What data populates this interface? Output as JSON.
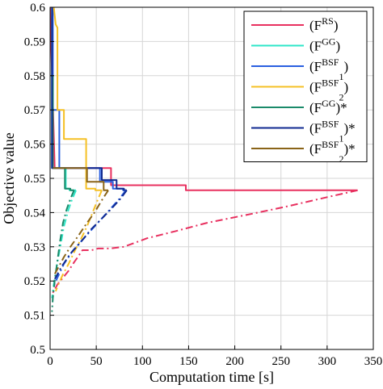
{
  "chart_data": {
    "type": "line",
    "xlabel": "Computation time [s]",
    "ylabel": "Objective value",
    "xlim": [
      0,
      350
    ],
    "ylim": [
      0.5,
      0.6
    ],
    "xticks": [
      "0",
      "50",
      "100",
      "150",
      "200",
      "250",
      "300",
      "350"
    ],
    "yticks": [
      "0.5",
      "0.51",
      "0.52",
      "0.53",
      "0.54",
      "0.55",
      "0.56",
      "0.57",
      "0.58",
      "0.59",
      "0.6"
    ],
    "grid": true,
    "legend_position": "top-right",
    "series": [
      {
        "name": "(F^RS)",
        "name_base": "(F",
        "name_sup": "RS",
        "name_sub": "",
        "name_suffix": ")",
        "color": "#e8305f",
        "style": "solid",
        "points": [
          [
            0,
            0.6
          ],
          [
            5,
            0.553
          ],
          [
            66,
            0.553
          ],
          [
            66,
            0.548
          ],
          [
            147,
            0.548
          ],
          [
            147,
            0.5465
          ],
          [
            333,
            0.5465
          ]
        ]
      },
      {
        "name": "(F^GG)",
        "name_base": "(F",
        "name_sup": "GG",
        "name_sub": "",
        "name_suffix": ")",
        "color": "#2ee6c8",
        "style": "solid",
        "points": [
          [
            2,
            0.6
          ],
          [
            2,
            0.553
          ],
          [
            17,
            0.553
          ],
          [
            17,
            0.547
          ],
          [
            21,
            0.547
          ],
          [
            21,
            0.5465
          ],
          [
            28,
            0.5465
          ]
        ]
      },
      {
        "name": "(F^BSF1)",
        "name_base": "(F",
        "name_sup": "BSF",
        "name_sub": "1",
        "name_suffix": ")",
        "color": "#2a5fe0",
        "style": "solid",
        "points": [
          [
            3,
            0.6
          ],
          [
            3,
            0.57
          ],
          [
            10,
            0.57
          ],
          [
            10,
            0.553
          ],
          [
            54,
            0.553
          ],
          [
            54,
            0.549
          ],
          [
            68,
            0.549
          ],
          [
            68,
            0.547
          ],
          [
            79,
            0.547
          ],
          [
            79,
            0.5465
          ],
          [
            82,
            0.5465
          ]
        ]
      },
      {
        "name": "(F^BSF2)",
        "name_base": "(F",
        "name_sup": "BSF",
        "name_sub": "2",
        "name_suffix": ")",
        "color": "#f5c025",
        "style": "solid",
        "points": [
          [
            4,
            0.6
          ],
          [
            6,
            0.595
          ],
          [
            8,
            0.594
          ],
          [
            8,
            0.57
          ],
          [
            15,
            0.57
          ],
          [
            15,
            0.5615
          ],
          [
            39,
            0.5615
          ],
          [
            39,
            0.547
          ],
          [
            49,
            0.547
          ],
          [
            49,
            0.5465
          ],
          [
            56,
            0.5465
          ]
        ]
      },
      {
        "name": "(F^GG)*",
        "name_base": "(F",
        "name_sup": "GG",
        "name_sub": "",
        "name_suffix": ")*",
        "color": "#1a8a6a",
        "style": "solid",
        "points": [
          [
            1,
            0.58
          ],
          [
            3,
            0.58
          ],
          [
            3,
            0.553
          ],
          [
            16,
            0.553
          ],
          [
            16,
            0.547
          ],
          [
            22,
            0.547
          ],
          [
            22,
            0.5465
          ],
          [
            26,
            0.5465
          ]
        ]
      },
      {
        "name": "(F^BSF1)*",
        "name_base": "(F",
        "name_sup": "BSF",
        "name_sub": "1",
        "name_suffix": ")*",
        "color": "#102a90",
        "style": "solid",
        "points": [
          [
            2,
            0.6
          ],
          [
            2,
            0.553
          ],
          [
            56,
            0.553
          ],
          [
            56,
            0.5495
          ],
          [
            72,
            0.5495
          ],
          [
            72,
            0.547
          ],
          [
            80,
            0.547
          ],
          [
            80,
            0.5465
          ],
          [
            83,
            0.5465
          ]
        ]
      },
      {
        "name": "(F^BSF2)*",
        "name_base": "(F",
        "name_sup": "BSF",
        "name_sub": "2",
        "name_suffix": ")*",
        "color": "#8a6418",
        "style": "solid",
        "points": [
          [
            3,
            0.553
          ],
          [
            40,
            0.553
          ],
          [
            40,
            0.549
          ],
          [
            58,
            0.549
          ],
          [
            58,
            0.5465
          ],
          [
            63,
            0.5465
          ]
        ]
      },
      {
        "name": "",
        "color": "#e8305f",
        "style": "dashdot",
        "points": [
          [
            333,
            0.5465
          ],
          [
            300,
            0.5445
          ],
          [
            260,
            0.542
          ],
          [
            225,
            0.54
          ],
          [
            170,
            0.537
          ],
          [
            135,
            0.5345
          ],
          [
            105,
            0.5325
          ],
          [
            90,
            0.531
          ],
          [
            80,
            0.53
          ],
          [
            65,
            0.5295
          ],
          [
            52,
            0.5295
          ],
          [
            45,
            0.529
          ],
          [
            35,
            0.529
          ],
          [
            30,
            0.527
          ],
          [
            26,
            0.5255
          ],
          [
            20,
            0.523
          ],
          [
            14,
            0.521
          ],
          [
            8,
            0.519
          ],
          [
            4,
            0.517
          ],
          [
            1,
            0.516
          ]
        ]
      },
      {
        "name": "",
        "color": "#2ee6c8",
        "style": "dashdot",
        "points": [
          [
            28,
            0.5465
          ],
          [
            24,
            0.544
          ],
          [
            20,
            0.541
          ],
          [
            15,
            0.536
          ],
          [
            11,
            0.53
          ],
          [
            7,
            0.524
          ],
          [
            4,
            0.519
          ],
          [
            2,
            0.515
          ]
        ]
      },
      {
        "name": "",
        "color": "#2a5fe0",
        "style": "dashdot",
        "points": [
          [
            82,
            0.5465
          ],
          [
            75,
            0.544
          ],
          [
            65,
            0.541
          ],
          [
            55,
            0.538
          ],
          [
            45,
            0.535
          ],
          [
            35,
            0.532
          ],
          [
            25,
            0.529
          ],
          [
            15,
            0.525
          ],
          [
            8,
            0.521
          ],
          [
            3,
            0.518
          ]
        ]
      },
      {
        "name": "",
        "color": "#f5c025",
        "style": "dashdot",
        "points": [
          [
            56,
            0.5465
          ],
          [
            52,
            0.544
          ],
          [
            46,
            0.54
          ],
          [
            40,
            0.536
          ],
          [
            33,
            0.532
          ],
          [
            27,
            0.529
          ],
          [
            20,
            0.525
          ],
          [
            14,
            0.522
          ],
          [
            9,
            0.519
          ],
          [
            6,
            0.517
          ]
        ]
      },
      {
        "name": "",
        "color": "#1a8a6a",
        "style": "dashdot",
        "points": [
          [
            26,
            0.5465
          ],
          [
            22,
            0.544
          ],
          [
            18,
            0.541
          ],
          [
            14,
            0.537
          ],
          [
            11,
            0.532
          ],
          [
            8,
            0.526
          ],
          [
            5,
            0.52
          ],
          [
            3,
            0.515
          ],
          [
            2,
            0.511
          ]
        ]
      },
      {
        "name": "",
        "color": "#102a90",
        "style": "dashdot",
        "points": [
          [
            83,
            0.5465
          ],
          [
            76,
            0.544
          ],
          [
            66,
            0.541
          ],
          [
            55,
            0.538
          ],
          [
            44,
            0.535
          ],
          [
            32,
            0.531
          ],
          [
            22,
            0.528
          ],
          [
            12,
            0.524
          ],
          [
            6,
            0.521
          ],
          [
            3,
            0.52
          ]
        ]
      },
      {
        "name": "",
        "color": "#8a6418",
        "style": "dashdot",
        "points": [
          [
            63,
            0.5465
          ],
          [
            57,
            0.544
          ],
          [
            48,
            0.54
          ],
          [
            40,
            0.537
          ],
          [
            30,
            0.533
          ],
          [
            22,
            0.53
          ],
          [
            15,
            0.527
          ],
          [
            9,
            0.524
          ],
          [
            5,
            0.522
          ]
        ]
      }
    ]
  }
}
